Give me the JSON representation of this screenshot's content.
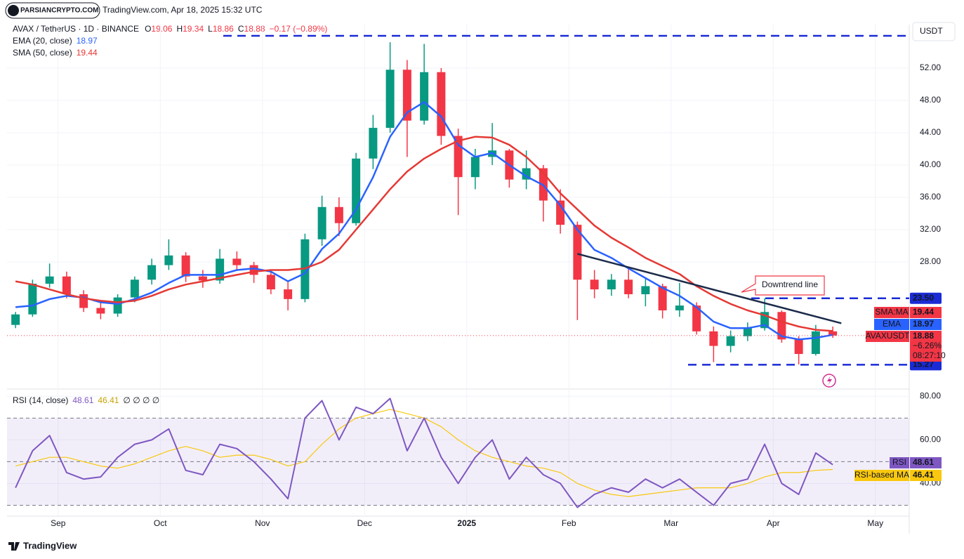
{
  "header": {
    "logo": "PARSIANCRYPTO.COM",
    "source": "TradingView.com, Apr 18, 2025 15:32 UTC",
    "footer": "TradingView"
  },
  "chart_data": [
    {
      "type": "candlestick",
      "title": "AVAX / TetherUS · 1D · BINANCE",
      "ohlc_summary": [
        {
          "label": "O",
          "value": 19.06
        },
        {
          "label": "H",
          "value": 19.34
        },
        {
          "label": "L",
          "value": 18.86
        },
        {
          "label": "C",
          "value": 18.88
        }
      ],
      "change": "−0.17 (−0.89%)",
      "unit": "USDT",
      "categories": [
        null,
        null,
        null,
        "Sep",
        null,
        null,
        null,
        null,
        null,
        "Oct",
        null,
        null,
        null,
        null,
        null,
        "Nov",
        null,
        null,
        null,
        null,
        null,
        "Dec",
        null,
        null,
        null,
        null,
        null,
        "2025",
        null,
        null,
        null,
        null,
        null,
        "Feb",
        null,
        null,
        null,
        null,
        null,
        "Mar",
        null,
        null,
        null,
        null,
        null,
        "Apr",
        null,
        null,
        null,
        null,
        null,
        "May",
        null
      ],
      "up_color": "#089981",
      "down_color": "#f23645",
      "ohlc": [
        [
          20.2,
          21.8,
          19.8,
          21.5
        ],
        [
          21.5,
          25.8,
          21.2,
          25.3
        ],
        [
          25.3,
          27.8,
          24.8,
          26.2
        ],
        [
          26.2,
          26.8,
          23.5,
          24.0
        ],
        [
          24.0,
          24.5,
          21.8,
          22.3
        ],
        [
          22.3,
          23.2,
          20.9,
          21.6
        ],
        [
          21.6,
          24.0,
          21.2,
          23.6
        ],
        [
          23.6,
          26.2,
          23.0,
          25.8
        ],
        [
          25.8,
          28.4,
          25.2,
          27.6
        ],
        [
          27.6,
          30.8,
          27.0,
          28.8
        ],
        [
          28.8,
          29.2,
          25.5,
          26.2
        ],
        [
          26.2,
          27.0,
          24.8,
          25.7
        ],
        [
          25.7,
          29.6,
          25.3,
          28.4
        ],
        [
          28.4,
          29.3,
          27.0,
          27.6
        ],
        [
          27.6,
          28.0,
          25.4,
          26.4
        ],
        [
          26.4,
          27.0,
          24.0,
          24.6
        ],
        [
          24.6,
          25.5,
          22.0,
          23.4
        ],
        [
          23.4,
          31.5,
          23.0,
          30.8
        ],
        [
          30.8,
          36.2,
          30.0,
          34.8
        ],
        [
          34.8,
          36.0,
          31.2,
          32.8
        ],
        [
          32.8,
          41.5,
          32.5,
          40.8
        ],
        [
          40.8,
          46.2,
          39.5,
          44.6
        ],
        [
          44.6,
          55.2,
          44.0,
          51.8
        ],
        [
          51.8,
          53.0,
          41.0,
          45.5
        ],
        [
          45.5,
          55.0,
          45.0,
          51.5
        ],
        [
          51.5,
          52.0,
          42.5,
          43.6
        ],
        [
          43.6,
          44.5,
          33.8,
          38.5
        ],
        [
          38.5,
          42.0,
          37.0,
          41.0
        ],
        [
          41.0,
          45.2,
          40.0,
          41.8
        ],
        [
          41.8,
          42.0,
          37.2,
          38.2
        ],
        [
          38.2,
          41.8,
          37.0,
          39.6
        ],
        [
          39.6,
          40.0,
          33.0,
          35.6
        ],
        [
          35.6,
          37.0,
          31.5,
          32.6
        ],
        [
          32.6,
          33.0,
          20.8,
          25.8
        ],
        [
          25.8,
          27.0,
          23.5,
          24.6
        ],
        [
          24.6,
          26.5,
          23.8,
          25.8
        ],
        [
          25.8,
          27.2,
          23.5,
          24.0
        ],
        [
          24.0,
          26.0,
          22.5,
          25.0
        ],
        [
          25.0,
          25.3,
          21.0,
          22.0
        ],
        [
          22.0,
          25.4,
          21.2,
          22.6
        ],
        [
          22.6,
          23.0,
          19.0,
          19.4
        ],
        [
          19.4,
          20.0,
          15.6,
          17.6
        ],
        [
          17.6,
          19.5,
          16.8,
          18.8
        ],
        [
          18.8,
          20.5,
          18.2,
          19.8
        ],
        [
          19.8,
          23.5,
          19.5,
          21.8
        ],
        [
          21.8,
          22.0,
          18.0,
          18.4
        ],
        [
          18.4,
          18.8,
          15.3,
          16.6
        ],
        [
          16.6,
          20.2,
          16.4,
          19.4
        ],
        [
          19.4,
          20.0,
          18.6,
          18.88
        ],
        null,
        null,
        null,
        null
      ],
      "series": [
        {
          "name": "EMA (20, close)",
          "color": "#2962ff",
          "values": [
            22.4,
            22.6,
            23.4,
            23.8,
            23.6,
            23.0,
            22.8,
            23.4,
            24.2,
            25.4,
            26.4,
            26.4,
            26.4,
            27.0,
            27.2,
            26.8,
            25.6,
            26.6,
            29.6,
            31.5,
            34.5,
            38.5,
            43.5,
            46.5,
            47.8,
            46.0,
            42.5,
            41.0,
            41.5,
            40.0,
            38.6,
            37.5,
            35.0,
            32.0,
            29.5,
            28.5,
            27.2,
            26.0,
            24.8,
            23.8,
            22.4,
            20.6,
            19.8,
            19.8,
            20.2,
            18.8,
            18.4,
            18.6,
            18.97,
            null,
            null,
            null,
            null
          ]
        },
        {
          "name": "SMA (50, close)",
          "color": "#e53935",
          "values": [
            25.6,
            25.2,
            24.6,
            24.0,
            23.5,
            23.2,
            23.0,
            23.2,
            23.8,
            24.6,
            25.2,
            25.6,
            26.0,
            26.4,
            26.8,
            27.0,
            27.0,
            27.2,
            28.0,
            29.5,
            32.0,
            34.5,
            37.0,
            39.2,
            40.8,
            42.0,
            43.0,
            43.5,
            43.4,
            42.5,
            41.0,
            39.0,
            36.5,
            34.5,
            32.5,
            31.0,
            29.8,
            28.5,
            27.5,
            26.5,
            25.0,
            23.8,
            22.8,
            22.0,
            21.4,
            20.6,
            20.0,
            19.6,
            19.44,
            null,
            null,
            null,
            null
          ]
        }
      ],
      "axis_tags": [
        {
          "label": "SMA:MA",
          "value": 19.44,
          "color": "#f23645"
        },
        {
          "label": "EMA",
          "value": 18.97,
          "color": "#2962ff"
        },
        {
          "label": "AVAXUSDT",
          "value": 18.88,
          "change": "−6.26%",
          "countdown": "08:27:10",
          "color": "#f23645"
        }
      ],
      "levels": [
        {
          "value": 56
        },
        {
          "value": 23.5,
          "label": "23.50"
        },
        {
          "value": 15.27
        }
      ],
      "trendline": {
        "values": [
          29.0,
          20.4
        ],
        "label": "Downtrend line"
      },
      "ylim": [
        12.43,
        57.39
      ],
      "yticks": [
        {
          "value": 28,
          "label": "28.00"
        },
        {
          "value": 32,
          "label": "32.00"
        },
        {
          "value": 36,
          "label": "36.00"
        },
        {
          "value": 40,
          "label": "40.00"
        },
        {
          "value": 44,
          "label": "44.00"
        },
        {
          "value": 48,
          "label": "48.00"
        },
        {
          "value": 52,
          "label": "52.00"
        }
      ]
    },
    {
      "type": "line",
      "title": "RSI (14, close)",
      "extra": "∅ ∅ ∅ ∅",
      "series": [
        {
          "name": "RSI",
          "color": "#7e57c2",
          "values": [
            38,
            55,
            62,
            45,
            42,
            43,
            52,
            58,
            60,
            65,
            46,
            44,
            58,
            56,
            50,
            42,
            33,
            70,
            78,
            60,
            75,
            72,
            79,
            55,
            70,
            52,
            40,
            52,
            60,
            42,
            52,
            44,
            40,
            29,
            35,
            38,
            36,
            42,
            38,
            42,
            36,
            30,
            40,
            42,
            58,
            40,
            35,
            54,
            48.61,
            null,
            null,
            null,
            null
          ]
        },
        {
          "name": "RSI-based MA",
          "color": "#f9c80e",
          "values": [
            48,
            50,
            52,
            52,
            50,
            48,
            47,
            49,
            52,
            55,
            57,
            55,
            52,
            53,
            53,
            51,
            48,
            50,
            58,
            65,
            70,
            72,
            74,
            72,
            70,
            66,
            60,
            55,
            52,
            50,
            48,
            47,
            45,
            40,
            37,
            35,
            34,
            35,
            36,
            37,
            38,
            38,
            38,
            40,
            43,
            45,
            45,
            46,
            46.41,
            null,
            null,
            null,
            null
          ]
        }
      ],
      "band": [
        70,
        30
      ],
      "midline": 50,
      "ylim": [
        25,
        82.67
      ],
      "yticks": [
        {
          "value": 80,
          "label": "80.00"
        },
        {
          "value": 60,
          "label": "60.00"
        },
        {
          "value": 40,
          "label": "40.00"
        }
      ]
    }
  ]
}
